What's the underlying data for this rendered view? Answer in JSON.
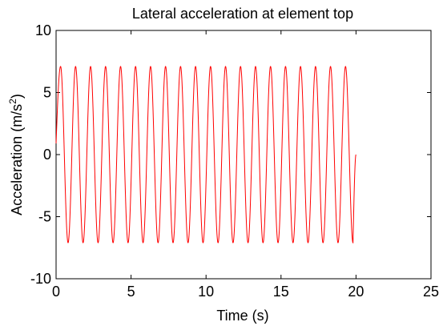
{
  "chart_data": {
    "type": "line",
    "title": "Lateral acceleration at element top",
    "xlabel": "Time (s)",
    "ylabel": "Acceleration (m/s²)",
    "ylabel_main": "Acceleration (m/s",
    "ylabel_sup": "2",
    "ylabel_close": ")",
    "xlim": [
      0,
      25
    ],
    "ylim": [
      -10,
      10
    ],
    "xticks": [
      0,
      5,
      10,
      15,
      20,
      25
    ],
    "yticks": [
      -10,
      -5,
      0,
      5,
      10
    ],
    "xtick_labels": [
      "0",
      "5",
      "10",
      "15",
      "20",
      "25"
    ],
    "ytick_labels": [
      "-10",
      "-5",
      "0",
      "5",
      "10"
    ],
    "grid": false,
    "series": [
      {
        "color": "#ff0000",
        "x_start": 0,
        "x_end": 20,
        "y_start": 0.9,
        "y_end": 0,
        "amplitude": 7.1,
        "frequency_hz": 1.0,
        "cycles": 20,
        "first_peak_x": 0.3,
        "last_peak_x": 19.3
      }
    ]
  }
}
